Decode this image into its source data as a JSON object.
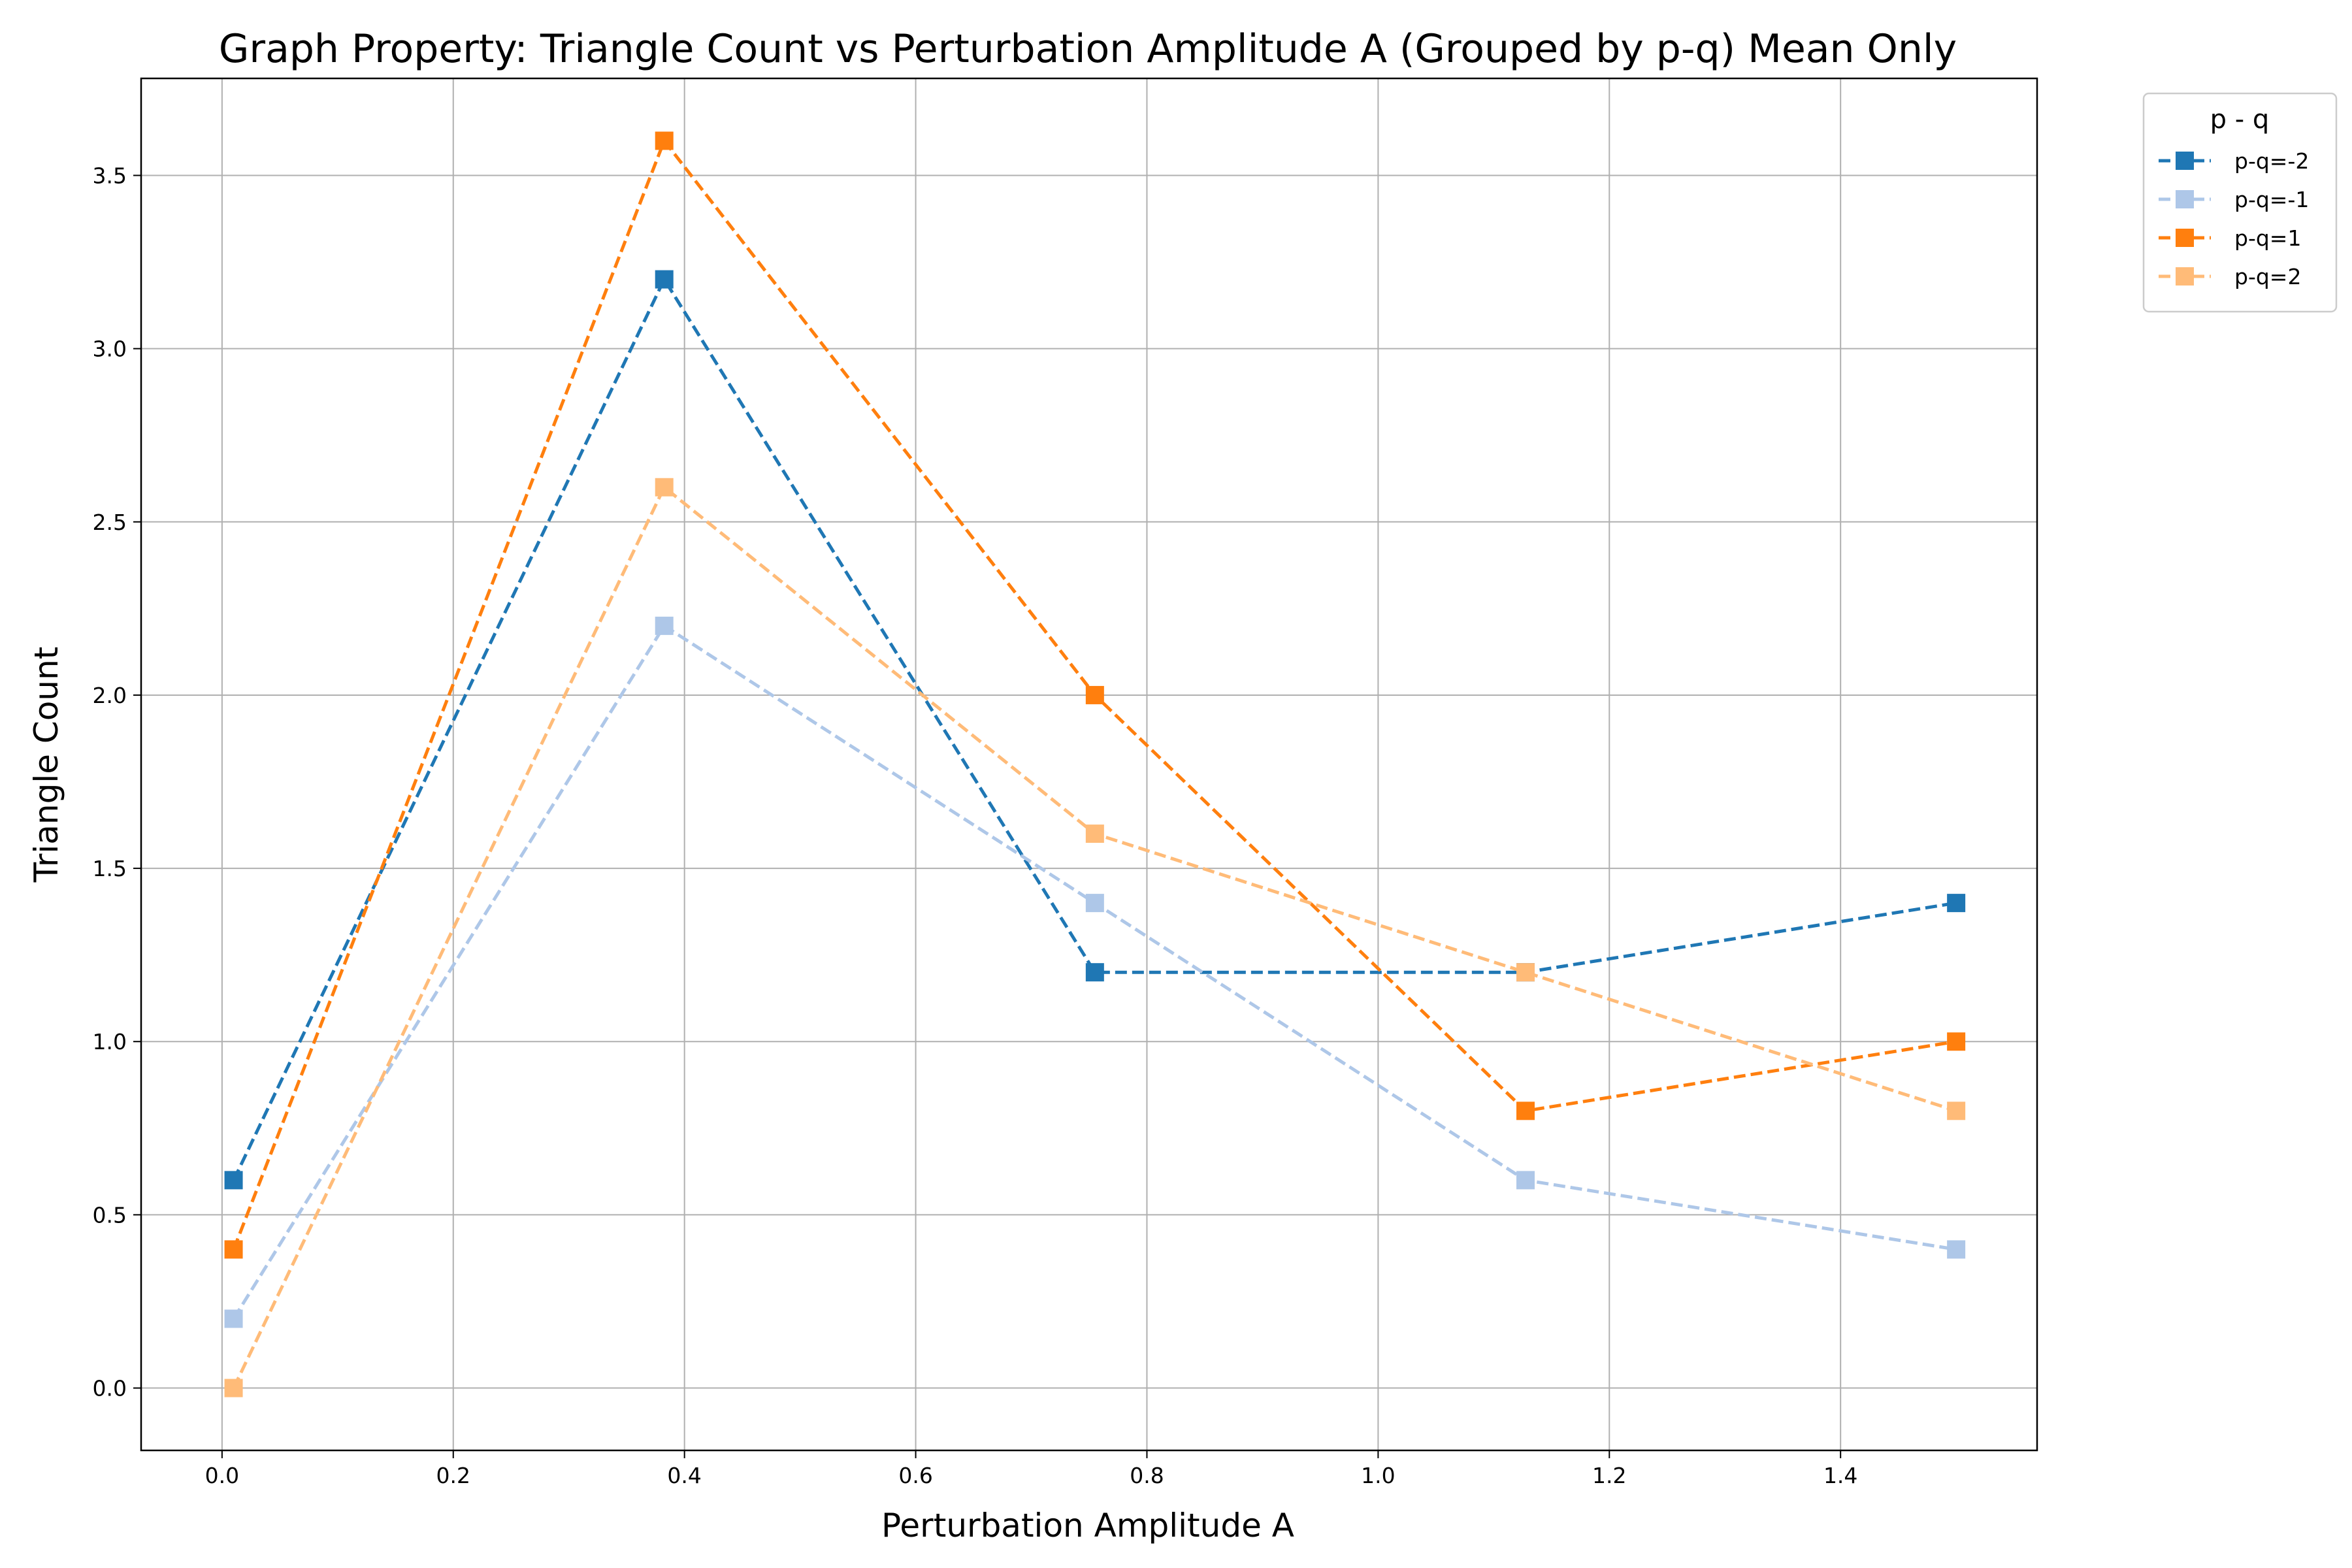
{
  "chart_data": {
    "type": "line",
    "title": "Graph Property: Triangle Count vs Perturbation Amplitude A (Grouped by p-q) Mean Only",
    "xlabel": "Perturbation Amplitude A",
    "ylabel": "Triangle Count",
    "xlim": [
      -0.07,
      1.57
    ],
    "ylim": [
      -0.18,
      3.78
    ],
    "xticks": [
      "0.0",
      "0.2",
      "0.4",
      "0.6",
      "0.8",
      "1.0",
      "1.2",
      "1.4"
    ],
    "yticks": [
      "0.0",
      "0.5",
      "1.0",
      "1.5",
      "2.0",
      "2.5",
      "3.0",
      "3.5"
    ],
    "x": [
      0.01,
      0.3825,
      0.755,
      1.1275,
      1.5
    ],
    "grid": true,
    "legend": {
      "title": "p - q",
      "placement": "outside-top-right"
    },
    "series": [
      {
        "name": "p-q=-2",
        "color": "#1f77b4",
        "values": [
          0.6,
          3.2,
          1.2,
          1.2,
          1.4
        ]
      },
      {
        "name": "p-q=-1",
        "color": "#aec7e8",
        "values": [
          0.2,
          2.2,
          1.4,
          0.6,
          0.4
        ]
      },
      {
        "name": "p-q=1",
        "color": "#ff7f0e",
        "values": [
          0.4,
          3.6,
          2.0,
          0.8,
          1.0
        ]
      },
      {
        "name": "p-q=2",
        "color": "#ffbb78",
        "values": [
          0.0,
          2.6,
          1.6,
          1.2,
          0.8
        ]
      }
    ]
  }
}
